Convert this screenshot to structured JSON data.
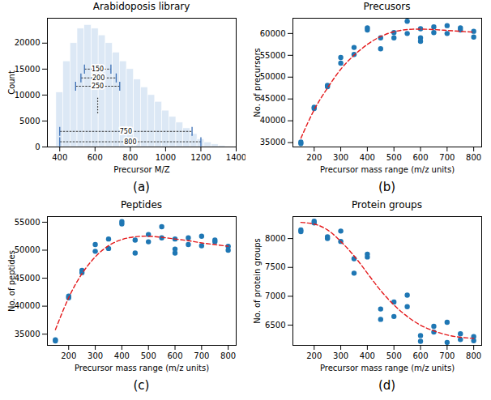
{
  "chart_data": [
    {
      "type": "histogram",
      "title": "Arabidoposis library",
      "caption": "(a)",
      "x_label": "Precursor M/Z",
      "y_label": "Count",
      "color": "#dce8f5",
      "bins": [
        380,
        420,
        460,
        500,
        540,
        580,
        620,
        660,
        700,
        740,
        780,
        820,
        860,
        900,
        940,
        980,
        1020,
        1060,
        1100,
        1140,
        1180,
        1220,
        1260,
        1300,
        1340,
        1380
      ],
      "values": [
        10500,
        16500,
        20000,
        22800,
        23500,
        22800,
        21500,
        20000,
        18200,
        16500,
        15000,
        13000,
        11500,
        10000,
        8700,
        7000,
        5800,
        4700,
        3600,
        2500,
        1500,
        900,
        500,
        250,
        100
      ],
      "xlim": [
        330,
        1400
      ],
      "xticks": [
        400,
        600,
        800,
        1000,
        1200,
        1400
      ],
      "ylim": [
        0,
        24800
      ],
      "yticks": [
        0,
        5000,
        10000,
        15000,
        20000
      ],
      "annotations": [
        {
          "text": "150",
          "start": 540,
          "end": 690,
          "y": 15000
        },
        {
          "text": "200",
          "start": 520,
          "end": 720,
          "y": 13300
        },
        {
          "text": "250",
          "start": 490,
          "end": 740,
          "y": 11700
        },
        {
          "text": "750",
          "start": 400,
          "end": 1150,
          "y": 3000
        },
        {
          "text": "800",
          "start": 400,
          "end": 1200,
          "y": 1000
        }
      ],
      "center_mark": {
        "x": 615,
        "y1": 6500,
        "y2": 9500
      }
    },
    {
      "type": "scatter",
      "title": "Precusors",
      "caption": "(b)",
      "x_label": "Precursor mass range (m/z units)",
      "y_label": "No. of precursors",
      "xlim": [
        120,
        830
      ],
      "xticks": [
        200,
        300,
        400,
        500,
        600,
        700,
        800
      ],
      "ylim": [
        34000,
        63500
      ],
      "yticks": [
        35000,
        40000,
        45000,
        50000,
        55000,
        60000
      ],
      "series": [
        {
          "type": "scatter",
          "color": "#1f77b4",
          "marker": "circle",
          "x": [
            150,
            150,
            200,
            200,
            250,
            250,
            300,
            300,
            350,
            350,
            400,
            400,
            450,
            450,
            500,
            500,
            550,
            550,
            600,
            600,
            600,
            650,
            650,
            700,
            700,
            750,
            750,
            800,
            800
          ],
          "values": [
            34800,
            35100,
            42800,
            43100,
            47800,
            48100,
            53200,
            54500,
            55200,
            56800,
            60800,
            61300,
            56500,
            59000,
            59000,
            60200,
            60000,
            62800,
            58200,
            59000,
            61100,
            60200,
            61500,
            60000,
            61800,
            60800,
            61300,
            59200,
            60500
          ]
        },
        {
          "type": "line",
          "color": "#e41a1c",
          "line_style": "dashed",
          "x": [
            150,
            200,
            250,
            300,
            350,
            400,
            450,
            500,
            550,
            600,
            650,
            700,
            750,
            800
          ],
          "values": [
            36000,
            42500,
            47500,
            51800,
            55000,
            57500,
            59300,
            60400,
            60900,
            61000,
            60900,
            60700,
            60500,
            60300
          ]
        }
      ]
    },
    {
      "type": "scatter",
      "title": "Peptides",
      "caption": "(c)",
      "x_label": "Precursor mass range (m/z units)",
      "y_label": "No. of peptides",
      "xlim": [
        120,
        830
      ],
      "xticks": [
        200,
        300,
        400,
        500,
        600,
        700,
        800
      ],
      "ylim": [
        33000,
        56000
      ],
      "yticks": [
        35000,
        40000,
        45000,
        50000,
        55000
      ],
      "series": [
        {
          "type": "scatter",
          "color": "#1f77b4",
          "marker": "circle",
          "x": [
            150,
            150,
            200,
            200,
            250,
            250,
            300,
            300,
            350,
            350,
            400,
            400,
            450,
            450,
            500,
            500,
            550,
            550,
            600,
            600,
            600,
            650,
            650,
            700,
            700,
            750,
            750,
            800,
            800
          ],
          "values": [
            33800,
            34000,
            41500,
            41800,
            46000,
            46400,
            49800,
            51000,
            50300,
            52000,
            54700,
            55100,
            49500,
            51800,
            51500,
            52800,
            52200,
            54200,
            49500,
            50200,
            52000,
            51000,
            52200,
            50800,
            52500,
            51500,
            51800,
            50000,
            50700
          ]
        },
        {
          "type": "line",
          "color": "#e41a1c",
          "line_style": "dashed",
          "x": [
            150,
            200,
            250,
            300,
            350,
            400,
            450,
            500,
            550,
            600,
            650,
            700,
            750,
            800
          ],
          "values": [
            35800,
            41500,
            45800,
            48800,
            50800,
            51900,
            52400,
            52500,
            52300,
            52000,
            51700,
            51300,
            51000,
            50700
          ]
        }
      ]
    },
    {
      "type": "scatter",
      "title": "Protein groups",
      "caption": "(d)",
      "x_label": "Precursor mass range (m/z units)",
      "y_label": "No. of protein groups",
      "xlim": [
        120,
        830
      ],
      "xticks": [
        200,
        300,
        400,
        500,
        600,
        700,
        800
      ],
      "ylim": [
        6150,
        8380
      ],
      "yticks": [
        6500,
        7000,
        7500,
        8000
      ],
      "series": [
        {
          "type": "scatter",
          "color": "#1f77b4",
          "marker": "circle",
          "x": [
            150,
            150,
            200,
            200,
            250,
            250,
            300,
            300,
            350,
            350,
            400,
            400,
            450,
            450,
            500,
            500,
            550,
            550,
            600,
            600,
            650,
            650,
            700,
            700,
            750,
            750,
            800,
            800
          ],
          "values": [
            8120,
            8150,
            8270,
            8300,
            8000,
            8030,
            7950,
            8130,
            7400,
            7650,
            7680,
            7730,
            6600,
            6780,
            6650,
            6900,
            6820,
            7020,
            6220,
            6320,
            6380,
            6480,
            6200,
            6550,
            6250,
            6350,
            6230,
            6300
          ]
        },
        {
          "type": "line",
          "color": "#e41a1c",
          "line_style": "dashed",
          "x": [
            150,
            200,
            250,
            300,
            350,
            400,
            450,
            500,
            550,
            600,
            650,
            700,
            750,
            800
          ],
          "values": [
            8280,
            8250,
            8150,
            7950,
            7700,
            7400,
            7100,
            6850,
            6650,
            6500,
            6400,
            6330,
            6290,
            6270
          ]
        }
      ]
    }
  ]
}
